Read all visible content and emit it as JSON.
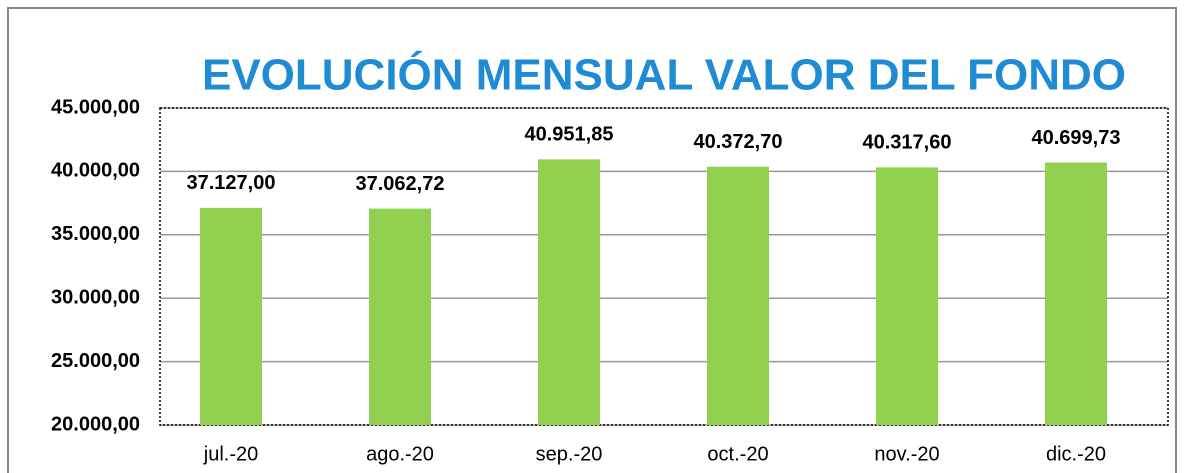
{
  "chart_data": {
    "type": "bar",
    "title": "EVOLUCIÓN MENSUAL VALOR DEL FONDO",
    "categories": [
      "jul.-20",
      "ago.-20",
      "sep.-20",
      "oct.-20",
      "nov.-20",
      "dic.-20"
    ],
    "values": [
      37127.0,
      37062.72,
      40951.85,
      40372.7,
      40317.6,
      40699.73
    ],
    "value_labels": [
      "37.127,00",
      "37.062,72",
      "40.951,85",
      "40.372,70",
      "40.317,60",
      "40.699,73"
    ],
    "color": "#92d050",
    "ylim": [
      20000,
      45000
    ],
    "yticks": [
      {
        "value": 20000,
        "label": "20.000,00"
      },
      {
        "value": 25000,
        "label": "25.000,00"
      },
      {
        "value": 30000,
        "label": "30.000,00"
      },
      {
        "value": 35000,
        "label": "35.000,00"
      },
      {
        "value": 40000,
        "label": "40.000,00"
      },
      {
        "value": 45000,
        "label": "45.000,00"
      }
    ],
    "grid": true
  }
}
